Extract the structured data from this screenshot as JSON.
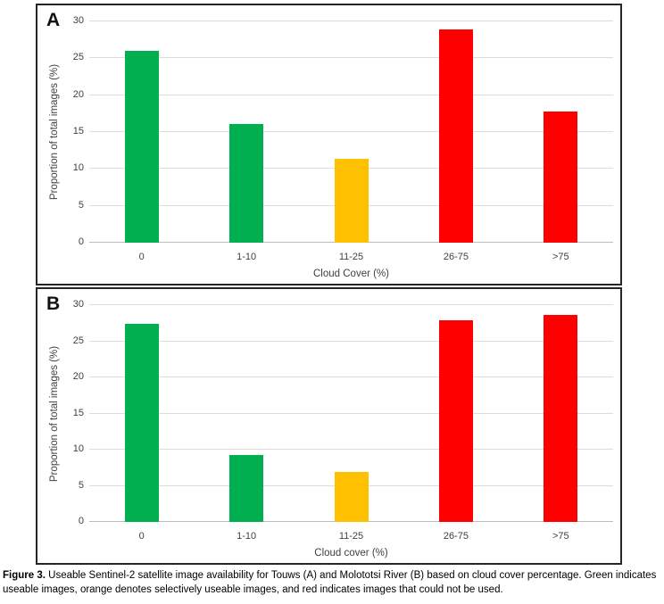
{
  "palette": {
    "green": "#00B050",
    "orange": "#FFC000",
    "red": "#FF0000"
  },
  "chart_data": [
    {
      "type": "bar",
      "panel_label": "A",
      "title": "",
      "xlabel": "Cloud Cover (%)",
      "ylabel": "Proportion of total images (%)",
      "categories": [
        "0",
        "1-10",
        "11-25",
        "26-75",
        ">75"
      ],
      "values": [
        26.0,
        16.1,
        11.4,
        28.9,
        17.8
      ],
      "bar_colors": [
        "green",
        "green",
        "orange",
        "red",
        "red"
      ],
      "ylim": [
        0,
        30
      ],
      "yticks": [
        0,
        5,
        10,
        15,
        20,
        25,
        30
      ],
      "grid": true,
      "legend": false
    },
    {
      "type": "bar",
      "panel_label": "B",
      "title": "",
      "xlabel": "Cloud cover (%)",
      "ylabel": "Proportion of total images (%)",
      "categories": [
        "0",
        "1-10",
        "11-25",
        "26-75",
        ">75"
      ],
      "values": [
        27.4,
        9.3,
        6.9,
        27.9,
        28.6
      ],
      "bar_colors": [
        "green",
        "green",
        "orange",
        "red",
        "red"
      ],
      "ylim": [
        0,
        30
      ],
      "yticks": [
        0,
        5,
        10,
        15,
        20,
        25,
        30
      ],
      "grid": true,
      "legend": false
    }
  ],
  "caption": {
    "bold": "Figure 3.",
    "text": " Useable Sentinel-2 satellite image availability for Touws (A) and Molototsi River (B) based on cloud cover percentage. Green indicates useable images, orange denotes selectively useable images, and red indicates images that could not be used."
  }
}
